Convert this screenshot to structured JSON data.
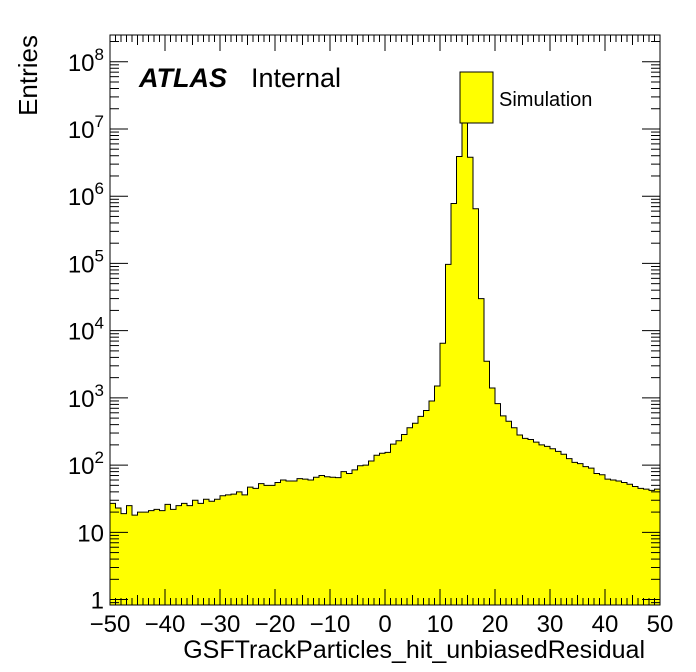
{
  "chart_data": {
    "type": "bar",
    "xlabel": "GSFTrackParticles_hit_unbiasedResidual",
    "ylabel": "Entries",
    "xlim": [
      -50,
      50
    ],
    "ylim": [
      0.83,
      250000000
    ],
    "log_y": true,
    "bin_width": 1,
    "x_tick_labels": [
      "−50",
      "−40",
      "−30",
      "−20",
      "−10",
      "0",
      "10",
      "20",
      "30",
      "40",
      "50"
    ],
    "x_ticks": [
      -50,
      -40,
      -30,
      -20,
      -10,
      0,
      10,
      20,
      30,
      40,
      50
    ],
    "y_ticks": [
      {
        "value": 1,
        "base": "1",
        "exp": ""
      },
      {
        "value": 10,
        "base": "10",
        "exp": ""
      },
      {
        "value": 100,
        "base": "10",
        "exp": "2"
      },
      {
        "value": 1000,
        "base": "10",
        "exp": "3"
      },
      {
        "value": 10000,
        "base": "10",
        "exp": "4"
      },
      {
        "value": 100000,
        "base": "10",
        "exp": "5"
      },
      {
        "value": 1000000,
        "base": "10",
        "exp": "6"
      },
      {
        "value": 10000000,
        "base": "10",
        "exp": "7"
      },
      {
        "value": 100000000,
        "base": "10",
        "exp": "8"
      }
    ],
    "fill_color": "#ffff00",
    "line_color": "#000000",
    "atlas_label": "ATLAS",
    "atlas_sublabel": "Internal",
    "legend_position": "top-right",
    "series": [
      {
        "name": "Simulation",
        "bin_edges_start": -50,
        "values": [
          27,
          23,
          19,
          25,
          18,
          20,
          20,
          21,
          22,
          21,
          26,
          22,
          25,
          27,
          25,
          30,
          27,
          31,
          29,
          31,
          35,
          36,
          37,
          40,
          36,
          47,
          45,
          53,
          50,
          50,
          55,
          60,
          58,
          58,
          63,
          62,
          60,
          66,
          70,
          67,
          66,
          65,
          80,
          75,
          85,
          98,
          100,
          115,
          140,
          150,
          155,
          205,
          230,
          285,
          360,
          420,
          530,
          650,
          900,
          1500,
          6500,
          97000,
          780000,
          3900000,
          19000000,
          3800000,
          650000,
          30000,
          3500,
          1400,
          820,
          540,
          450,
          360,
          280,
          250,
          240,
          220,
          200,
          190,
          175,
          160,
          145,
          125,
          110,
          105,
          95,
          90,
          75,
          72,
          62,
          60,
          58,
          55,
          52,
          48,
          45,
          44,
          42,
          44
        ]
      }
    ]
  },
  "page_values_note_free": true
}
